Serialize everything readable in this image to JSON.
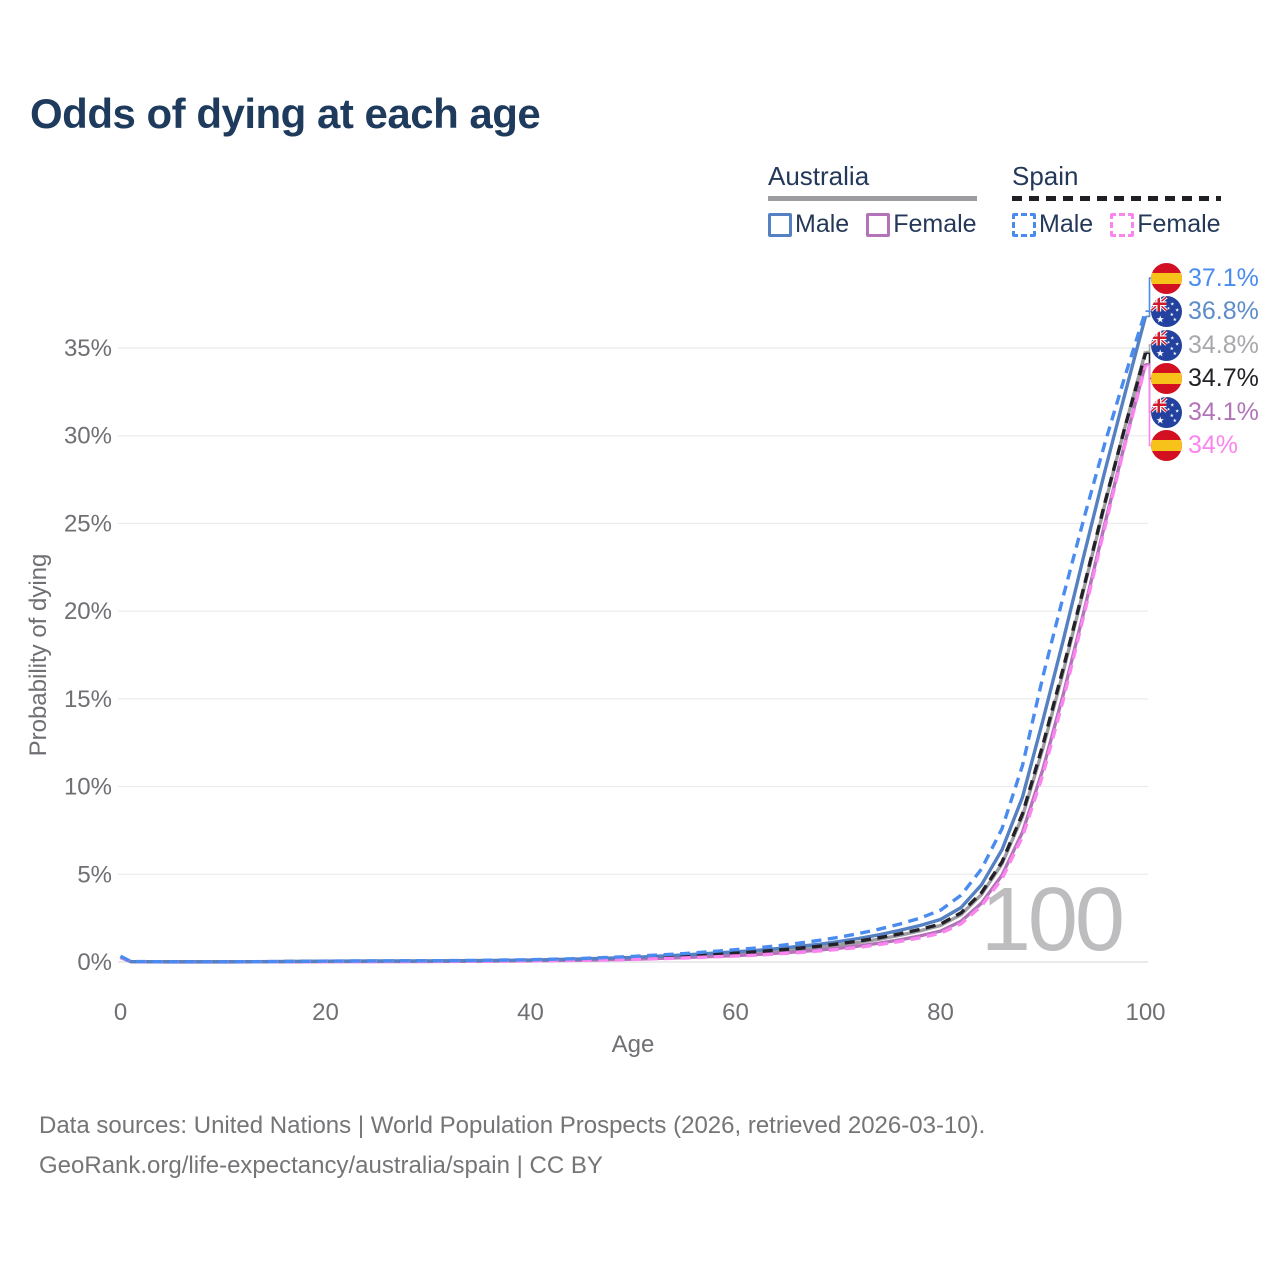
{
  "title": "Odds of dying at each age",
  "watermark": "100",
  "legend": {
    "groups": [
      {
        "label": "Australia",
        "line_style": "solid",
        "underline_color": "#9d9da1",
        "items": [
          {
            "label": "Male",
            "color": "#5580c1"
          },
          {
            "label": "Female",
            "color": "#b273b8"
          }
        ]
      },
      {
        "label": "Spain",
        "line_style": "dashed",
        "underline_color": "#1f1f24",
        "items": [
          {
            "label": "Male",
            "color": "#4a8bf0"
          },
          {
            "label": "Female",
            "color": "#fb85ef"
          }
        ]
      }
    ]
  },
  "footer": {
    "line1": "Data sources: United Nations | World Population Prospects (2026, retrieved 2026-03-10).",
    "line2": "GeoRank.org/life-expectancy/australia/spain | CC BY"
  },
  "chart_data": {
    "type": "line",
    "title": "Odds of dying at each age",
    "xlabel": "Age",
    "ylabel": "Probability of dying",
    "x_axis": {
      "label": "Age",
      "ticks": [
        0,
        20,
        40,
        60,
        80,
        100
      ],
      "range": [
        0,
        100
      ],
      "grid": false
    },
    "y_axis": {
      "label": "Probability of dying",
      "ticks": [
        "0%",
        "5%",
        "10%",
        "15%",
        "20%",
        "25%",
        "30%",
        "35%"
      ],
      "range_pct": [
        0,
        40
      ],
      "grid": true
    },
    "legend_position": "top-right",
    "hovered_age": "100",
    "series": [
      {
        "id": "au-all",
        "name": "Australia",
        "sex": "All",
        "color": "#9d9da1",
        "dash": false,
        "end_value_pct": 34.8,
        "points": [
          [
            0,
            0.28
          ],
          [
            1,
            0.022
          ],
          [
            2,
            0.016
          ],
          [
            5,
            0.009
          ],
          [
            10,
            0.009
          ],
          [
            15,
            0.016
          ],
          [
            20,
            0.035
          ],
          [
            25,
            0.042
          ],
          [
            30,
            0.05
          ],
          [
            35,
            0.062
          ],
          [
            40,
            0.088
          ],
          [
            45,
            0.135
          ],
          [
            50,
            0.21
          ],
          [
            55,
            0.32
          ],
          [
            60,
            0.47
          ],
          [
            62,
            0.54
          ],
          [
            64,
            0.62
          ],
          [
            66,
            0.72
          ],
          [
            68,
            0.83
          ],
          [
            70,
            0.96
          ],
          [
            72,
            1.12
          ],
          [
            74,
            1.3
          ],
          [
            76,
            1.52
          ],
          [
            78,
            1.78
          ],
          [
            80,
            2.08
          ],
          [
            82,
            2.7
          ],
          [
            84,
            3.85
          ],
          [
            86,
            5.6
          ],
          [
            88,
            8.3
          ],
          [
            90,
            12.2
          ],
          [
            92,
            16.6
          ],
          [
            94,
            21.3
          ],
          [
            96,
            26.0
          ],
          [
            98,
            30.5
          ],
          [
            100,
            34.8
          ]
        ]
      },
      {
        "id": "au-female",
        "name": "Australia Female",
        "sex": "Female",
        "color": "#b273b8",
        "dash": false,
        "end_value_pct": 34.1,
        "points": [
          [
            0,
            0.25
          ],
          [
            1,
            0.02
          ],
          [
            2,
            0.014
          ],
          [
            5,
            0.008
          ],
          [
            10,
            0.008
          ],
          [
            15,
            0.012
          ],
          [
            20,
            0.025
          ],
          [
            25,
            0.03
          ],
          [
            30,
            0.036
          ],
          [
            35,
            0.047
          ],
          [
            40,
            0.066
          ],
          [
            45,
            0.1
          ],
          [
            50,
            0.16
          ],
          [
            55,
            0.25
          ],
          [
            60,
            0.37
          ],
          [
            62,
            0.43
          ],
          [
            64,
            0.5
          ],
          [
            66,
            0.58
          ],
          [
            68,
            0.67
          ],
          [
            70,
            0.78
          ],
          [
            72,
            0.91
          ],
          [
            74,
            1.07
          ],
          [
            76,
            1.26
          ],
          [
            78,
            1.49
          ],
          [
            80,
            1.76
          ],
          [
            82,
            2.32
          ],
          [
            84,
            3.35
          ],
          [
            86,
            4.95
          ],
          [
            88,
            7.4
          ],
          [
            90,
            11.0
          ],
          [
            92,
            15.3
          ],
          [
            94,
            20.0
          ],
          [
            96,
            24.9
          ],
          [
            98,
            29.6
          ],
          [
            100,
            34.1
          ]
        ]
      },
      {
        "id": "au-male",
        "name": "Australia Male",
        "sex": "Male",
        "color": "#5580c1",
        "dash": false,
        "end_value_pct": 36.8,
        "points": [
          [
            0,
            0.3
          ],
          [
            1,
            0.025
          ],
          [
            2,
            0.018
          ],
          [
            5,
            0.01
          ],
          [
            10,
            0.01
          ],
          [
            15,
            0.02
          ],
          [
            20,
            0.045
          ],
          [
            25,
            0.055
          ],
          [
            30,
            0.065
          ],
          [
            35,
            0.08
          ],
          [
            40,
            0.11
          ],
          [
            45,
            0.17
          ],
          [
            50,
            0.26
          ],
          [
            55,
            0.4
          ],
          [
            60,
            0.58
          ],
          [
            62,
            0.66
          ],
          [
            64,
            0.76
          ],
          [
            66,
            0.88
          ],
          [
            68,
            1.0
          ],
          [
            70,
            1.16
          ],
          [
            72,
            1.34
          ],
          [
            74,
            1.55
          ],
          [
            76,
            1.8
          ],
          [
            78,
            2.08
          ],
          [
            80,
            2.42
          ],
          [
            82,
            3.1
          ],
          [
            84,
            4.4
          ],
          [
            86,
            6.4
          ],
          [
            88,
            9.4
          ],
          [
            90,
            13.8
          ],
          [
            92,
            18.4
          ],
          [
            94,
            23.2
          ],
          [
            96,
            27.9
          ],
          [
            98,
            32.4
          ],
          [
            100,
            36.8
          ]
        ]
      },
      {
        "id": "es-all",
        "name": "Spain",
        "sex": "All",
        "color": "#222228",
        "dash": true,
        "end_value_pct": 34.7,
        "points": [
          [
            0,
            0.3
          ],
          [
            1,
            0.024
          ],
          [
            2,
            0.017
          ],
          [
            5,
            0.01
          ],
          [
            10,
            0.01
          ],
          [
            15,
            0.018
          ],
          [
            20,
            0.038
          ],
          [
            25,
            0.046
          ],
          [
            30,
            0.054
          ],
          [
            35,
            0.068
          ],
          [
            40,
            0.096
          ],
          [
            45,
            0.15
          ],
          [
            50,
            0.235
          ],
          [
            55,
            0.35
          ],
          [
            60,
            0.51
          ],
          [
            62,
            0.58
          ],
          [
            64,
            0.67
          ],
          [
            66,
            0.77
          ],
          [
            68,
            0.89
          ],
          [
            70,
            1.03
          ],
          [
            72,
            1.19
          ],
          [
            74,
            1.38
          ],
          [
            76,
            1.6
          ],
          [
            78,
            1.86
          ],
          [
            80,
            2.16
          ],
          [
            82,
            2.8
          ],
          [
            84,
            3.95
          ],
          [
            86,
            5.7
          ],
          [
            88,
            8.45
          ],
          [
            90,
            12.4
          ],
          [
            92,
            16.8
          ],
          [
            94,
            21.4
          ],
          [
            96,
            26.1
          ],
          [
            98,
            30.5
          ],
          [
            100,
            34.7
          ]
        ]
      },
      {
        "id": "es-female",
        "name": "Spain Female",
        "sex": "Female",
        "color": "#fb85ef",
        "dash": true,
        "end_value_pct": 34.0,
        "points": [
          [
            0,
            0.28
          ],
          [
            1,
            0.022
          ],
          [
            2,
            0.015
          ],
          [
            5,
            0.008
          ],
          [
            10,
            0.008
          ],
          [
            15,
            0.011
          ],
          [
            20,
            0.02
          ],
          [
            25,
            0.025
          ],
          [
            30,
            0.031
          ],
          [
            35,
            0.042
          ],
          [
            40,
            0.06
          ],
          [
            45,
            0.092
          ],
          [
            50,
            0.148
          ],
          [
            55,
            0.23
          ],
          [
            60,
            0.34
          ],
          [
            62,
            0.39
          ],
          [
            64,
            0.46
          ],
          [
            66,
            0.53
          ],
          [
            68,
            0.62
          ],
          [
            70,
            0.72
          ],
          [
            72,
            0.84
          ],
          [
            74,
            0.99
          ],
          [
            76,
            1.17
          ],
          [
            78,
            1.38
          ],
          [
            80,
            1.64
          ],
          [
            82,
            2.18
          ],
          [
            84,
            3.2
          ],
          [
            86,
            4.75
          ],
          [
            88,
            7.15
          ],
          [
            90,
            10.7
          ],
          [
            92,
            15.0
          ],
          [
            94,
            19.8
          ],
          [
            96,
            24.7
          ],
          [
            98,
            29.5
          ],
          [
            100,
            34.0
          ]
        ]
      },
      {
        "id": "es-male",
        "name": "Spain Male",
        "sex": "Male",
        "color": "#4a8bf0",
        "dash": true,
        "end_value_pct": 37.1,
        "points": [
          [
            0,
            0.33
          ],
          [
            1,
            0.03
          ],
          [
            2,
            0.02
          ],
          [
            5,
            0.012
          ],
          [
            10,
            0.012
          ],
          [
            15,
            0.025
          ],
          [
            20,
            0.05
          ],
          [
            25,
            0.06
          ],
          [
            30,
            0.07
          ],
          [
            35,
            0.09
          ],
          [
            40,
            0.13
          ],
          [
            45,
            0.2
          ],
          [
            50,
            0.32
          ],
          [
            55,
            0.48
          ],
          [
            60,
            0.7
          ],
          [
            62,
            0.8
          ],
          [
            64,
            0.92
          ],
          [
            66,
            1.06
          ],
          [
            68,
            1.22
          ],
          [
            70,
            1.4
          ],
          [
            72,
            1.62
          ],
          [
            74,
            1.87
          ],
          [
            76,
            2.16
          ],
          [
            78,
            2.5
          ],
          [
            80,
            2.95
          ],
          [
            82,
            3.8
          ],
          [
            84,
            5.3
          ],
          [
            86,
            7.6
          ],
          [
            88,
            11.2
          ],
          [
            90,
            16.3
          ],
          [
            92,
            20.9
          ],
          [
            94,
            25.3
          ],
          [
            96,
            29.5
          ],
          [
            98,
            33.4
          ],
          [
            100,
            37.1
          ]
        ]
      }
    ],
    "end_labels": [
      {
        "series": "es-male",
        "flag": "spain",
        "text": "37.1%",
        "color": "#4a8bf0"
      },
      {
        "series": "au-male",
        "flag": "australia",
        "text": "36.8%",
        "color": "#5d8cc9"
      },
      {
        "series": "au-all",
        "flag": "australia",
        "text": "34.8%",
        "color": "#a8a8ac"
      },
      {
        "series": "es-all",
        "flag": "spain",
        "text": "34.7%",
        "color": "#212126"
      },
      {
        "series": "au-female",
        "flag": "australia",
        "text": "34.1%",
        "color": "#b273b8"
      },
      {
        "series": "es-female",
        "flag": "spain",
        "text": "34%",
        "color": "#fb85ef"
      }
    ],
    "flag_colors": {
      "spain_red": "#d21022",
      "spain_yellow": "#f7c21a",
      "australia_blue": "#23429f",
      "jack_red": "#cf1b2b"
    }
  }
}
